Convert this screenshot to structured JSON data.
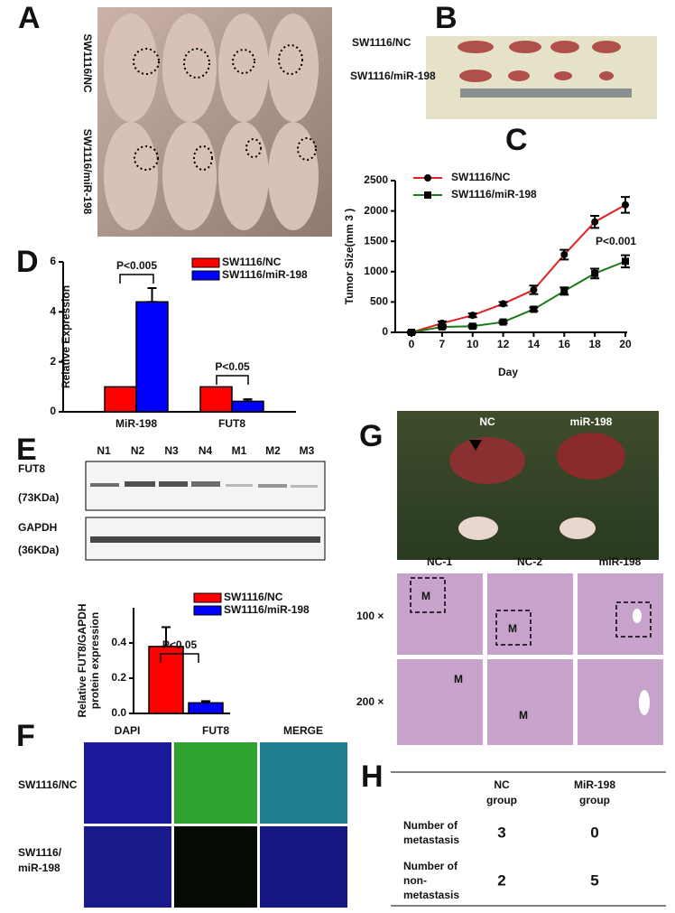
{
  "panels": {
    "A": {
      "letter": "A",
      "labels": [
        "SW1116/NC",
        "SW1116/miR-198"
      ]
    },
    "B": {
      "letter": "B",
      "labels": [
        "SW1116/NC",
        "SW1116/miR-198"
      ]
    },
    "C": {
      "letter": "C"
    },
    "D": {
      "letter": "D"
    },
    "E": {
      "letter": "E",
      "lanes": [
        "N1",
        "N2",
        "N3",
        "N4",
        "M1",
        "M2",
        "M3"
      ],
      "blot_labels": [
        "FUT8",
        "(73KDa)",
        "GAPDH",
        "(36KDa)"
      ]
    },
    "F": {
      "letter": "F",
      "columns": [
        "DAPI",
        "FUT8",
        "MERGE"
      ],
      "rows": [
        [
          "SW1116/NC"
        ],
        [
          "SW1116/",
          "miR-198"
        ]
      ]
    },
    "G": {
      "letter": "G",
      "photo_labels": [
        "NC",
        "miR-198"
      ],
      "columns": [
        "NC-1",
        "NC-2",
        "miR-198"
      ],
      "rows": [
        "100 ×",
        "200 ×"
      ],
      "marker": "M"
    },
    "H": {
      "letter": "H",
      "header": [
        [
          "NC",
          "group"
        ],
        [
          "MiR-198",
          "group"
        ]
      ],
      "rows": [
        {
          "label": [
            "Number of",
            "metastasis"
          ],
          "cells": [
            "3",
            "0"
          ]
        },
        {
          "label": [
            "Number of",
            "non-",
            "metastasis"
          ],
          "cells": [
            "2",
            "5"
          ]
        }
      ]
    }
  },
  "chart_data": [
    {
      "type": "line",
      "categories": [
        "0",
        "7",
        "10",
        "12",
        "14",
        "16",
        "18",
        "20"
      ],
      "ylabel": "Tumor Size(mm 3 )",
      "xlabel": "Day",
      "annotation": "P<0.001",
      "ylim": [
        0,
        2500
      ],
      "yticks": [
        0,
        500,
        1000,
        1500,
        2000,
        2500
      ],
      "series": [
        {
          "name": "SW1116/NC",
          "color": "#e02020",
          "values": [
            0,
            150,
            280,
            470,
            700,
            1280,
            1820,
            2100
          ],
          "errors": [
            20,
            30,
            30,
            30,
            70,
            80,
            100,
            130
          ]
        },
        {
          "name": "SW1116/miR-198",
          "color": "#1a7a1a",
          "values": [
            0,
            90,
            100,
            170,
            380,
            680,
            970,
            1170
          ],
          "errors": [
            10,
            20,
            20,
            20,
            30,
            60,
            80,
            100
          ]
        }
      ]
    },
    {
      "type": "bar",
      "categories": [
        "MiR-198",
        "FUT8"
      ],
      "ylabel": "Relative  Expression",
      "annotations": [
        "P<0.005",
        "P<0.05"
      ],
      "ylim": [
        0,
        6
      ],
      "yticks": [
        0,
        2,
        4,
        6
      ],
      "series": [
        {
          "name": "SW1116/NC",
          "color": "#ff0000",
          "values": [
            1,
            1
          ]
        },
        {
          "name": "SW1116/miR-198",
          "color": "#0000ff",
          "values": [
            4.4,
            0.42
          ],
          "errors": [
            0.55,
            0.08
          ]
        }
      ]
    },
    {
      "type": "bar",
      "categories": [
        null
      ],
      "ylabel": [
        "Relative FUT8/GAPDH",
        "protein expression"
      ],
      "annotations": [
        "P<0.05"
      ],
      "ylim": [
        0,
        0.6
      ],
      "yticks": [
        {
          "value": 0,
          "label": "0.0"
        },
        0.2,
        0.4
      ],
      "series": [
        {
          "name": "SW1116/NC",
          "color": "#ff0000",
          "values": [
            0.38
          ],
          "errors": [
            0.11
          ]
        },
        {
          "name": "SW1116/miR-198",
          "color": "#0000ff",
          "values": [
            0.06
          ],
          "errors": [
            0.01
          ]
        }
      ]
    }
  ]
}
